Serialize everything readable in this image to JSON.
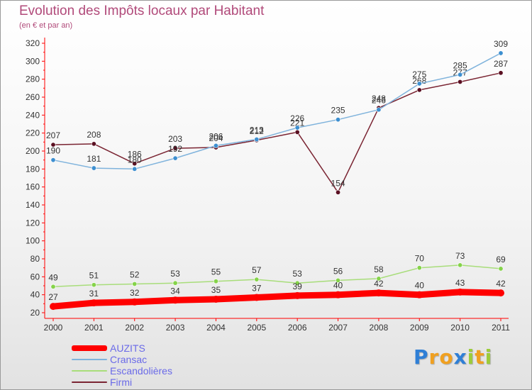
{
  "header": {
    "title": "Evolution des Impôts locaux par Habitant",
    "subtitle": "(en € et par an)"
  },
  "chart_data": {
    "type": "line",
    "title": "Evolution des Impôts locaux par Habitant",
    "subtitle": "(en € et par an)",
    "xlabel": "",
    "ylabel": "",
    "x": [
      "2000",
      "2001",
      "2002",
      "2003",
      "2004",
      "2005",
      "2006",
      "2007",
      "2008",
      "2009",
      "2010",
      "2011"
    ],
    "ylim": [
      20,
      320
    ],
    "yticks": [
      20,
      40,
      60,
      80,
      100,
      120,
      140,
      160,
      180,
      200,
      220,
      240,
      260,
      280,
      300,
      320
    ],
    "grid": false,
    "legend_position": "bottom-left",
    "series": [
      {
        "name": "Firmi",
        "color": "#7a2432",
        "marker_color": "#5a1022",
        "values": [
          207,
          208,
          186,
          203,
          204,
          212,
          221,
          154,
          248,
          268,
          277,
          287
        ]
      },
      {
        "name": "Cransac",
        "color": "#7fb3dc",
        "marker_color": "#3d8fd0",
        "values": [
          190,
          181,
          180,
          192,
          206,
          213,
          226,
          235,
          246,
          275,
          285,
          309
        ]
      },
      {
        "name": "Escandolières",
        "color": "#a8dd7a",
        "marker_color": "#85d34a",
        "values": [
          49,
          51,
          52,
          53,
          55,
          57,
          53,
          56,
          58,
          70,
          73,
          69
        ]
      },
      {
        "name": "AUZITS",
        "color": "#ff0000",
        "marker_color": "#ff0000",
        "values": [
          27,
          31,
          32,
          34,
          35,
          37,
          39,
          40,
          42,
          40,
          43,
          42
        ]
      }
    ]
  },
  "legend": {
    "items": [
      {
        "label": "AUZITS",
        "color": "#ff0000"
      },
      {
        "label": "Cransac",
        "color": "#7fb3dc"
      },
      {
        "label": "Escandolières",
        "color": "#a8dd7a"
      },
      {
        "label": "Firmi",
        "color": "#7a2432"
      }
    ]
  },
  "logo": {
    "letters": [
      "P",
      "r",
      "o",
      "x",
      "i",
      "t",
      "i"
    ],
    "colors": [
      "#2f7fd6",
      "#f0a020",
      "#f0a020",
      "#2f7fd6",
      "#9ccc3a",
      "#f0a020",
      "#9ccc3a"
    ]
  }
}
